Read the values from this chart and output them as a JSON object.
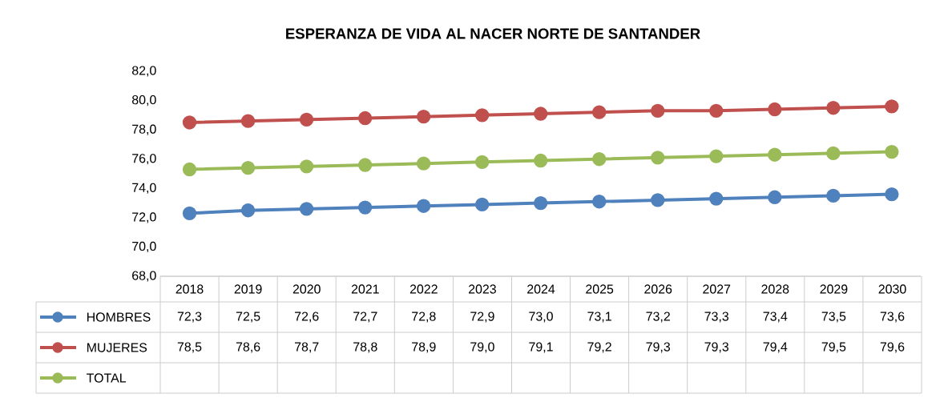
{
  "chart_data": {
    "type": "line",
    "title": "ESPERANZA DE VIDA AL NACER NORTE DE SANTANDER",
    "categories": [
      "2018",
      "2019",
      "2020",
      "2021",
      "2022",
      "2023",
      "2024",
      "2025",
      "2026",
      "2027",
      "2028",
      "2029",
      "2030"
    ],
    "ylim": [
      68,
      82
    ],
    "yticks": [
      {
        "value": 68,
        "label": "68,0"
      },
      {
        "value": 70,
        "label": "70,0"
      },
      {
        "value": 72,
        "label": "72,0"
      },
      {
        "value": 74,
        "label": "74,0"
      },
      {
        "value": 76,
        "label": "76,0"
      },
      {
        "value": 78,
        "label": "78,0"
      },
      {
        "value": 80,
        "label": "80,0"
      },
      {
        "value": 82,
        "label": "82,0"
      }
    ],
    "grid": false,
    "legend": "left",
    "marker": "circle",
    "line_style": "solid",
    "series": [
      {
        "name": "HOMBRES",
        "color": "#4f81bd",
        "values": [
          72.3,
          72.5,
          72.6,
          72.7,
          72.8,
          72.9,
          73.0,
          73.1,
          73.2,
          73.3,
          73.4,
          73.5,
          73.6
        ],
        "value_labels": [
          "72,3",
          "72,5",
          "72,6",
          "72,7",
          "72,8",
          "72,9",
          "73,0",
          "73,1",
          "73,2",
          "73,3",
          "73,4",
          "73,5",
          "73,6"
        ]
      },
      {
        "name": "MUJERES",
        "color": "#c0504d",
        "values": [
          78.5,
          78.6,
          78.7,
          78.8,
          78.9,
          79.0,
          79.1,
          79.2,
          79.3,
          79.3,
          79.4,
          79.5,
          79.6
        ],
        "value_labels": [
          "78,5",
          "78,6",
          "78,7",
          "78,8",
          "78,9",
          "79,0",
          "79,1",
          "79,2",
          "79,3",
          "79,3",
          "79,4",
          "79,5",
          "79,6"
        ]
      },
      {
        "name": "TOTAL",
        "color": "#9bbb59",
        "values": [
          75.3,
          75.4,
          75.5,
          75.6,
          75.7,
          75.8,
          75.9,
          76.0,
          76.1,
          76.2,
          76.3,
          76.4,
          76.5
        ],
        "value_labels": [
          null,
          null,
          null,
          null,
          null,
          null,
          null,
          null,
          null,
          null,
          null,
          null,
          null
        ]
      }
    ]
  }
}
